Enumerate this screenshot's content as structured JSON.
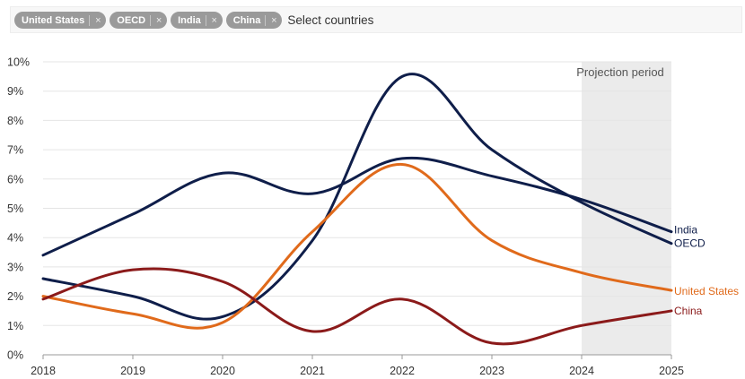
{
  "filter": {
    "chips": [
      {
        "label": "United States"
      },
      {
        "label": "OECD"
      },
      {
        "label": "India"
      },
      {
        "label": "China"
      }
    ],
    "remove_glyph": "×",
    "placeholder": "Select countries"
  },
  "colors": {
    "india": "#0f1e4a",
    "oecd": "#0f1e4a",
    "united_states": "#e06a1b",
    "china": "#8b1a1a",
    "projection_band": "#ebebeb",
    "grid": "#e5e5e5"
  },
  "chart_data": {
    "type": "line",
    "x": [
      2018,
      2019,
      2020,
      2021,
      2022,
      2023,
      2024,
      2025
    ],
    "x_tick_labels": [
      "2018",
      "2019",
      "2020",
      "2021",
      "2022",
      "2023",
      "2024",
      "2025"
    ],
    "y_tick_labels": [
      "0%",
      "1%",
      "2%",
      "3%",
      "4%",
      "5%",
      "6%",
      "7%",
      "8%",
      "9%",
      "10%"
    ],
    "ylim": [
      0,
      10
    ],
    "y_unit": "%",
    "grid": true,
    "projection": {
      "label": "Projection period",
      "from": 2024,
      "to": 2025
    },
    "series": [
      {
        "name": "India",
        "key": "india",
        "values": [
          3.4,
          4.8,
          6.2,
          5.5,
          6.7,
          6.1,
          5.3,
          4.2
        ]
      },
      {
        "name": "OECD",
        "key": "oecd",
        "values": [
          2.6,
          2.0,
          1.3,
          3.9,
          9.5,
          7.0,
          5.2,
          3.8
        ]
      },
      {
        "name": "United States",
        "key": "united_states",
        "values": [
          2.0,
          1.4,
          1.1,
          4.2,
          6.5,
          3.9,
          2.8,
          2.2
        ]
      },
      {
        "name": "China",
        "key": "china",
        "values": [
          1.9,
          2.9,
          2.5,
          0.8,
          1.9,
          0.4,
          1.0,
          1.5
        ]
      }
    ]
  }
}
